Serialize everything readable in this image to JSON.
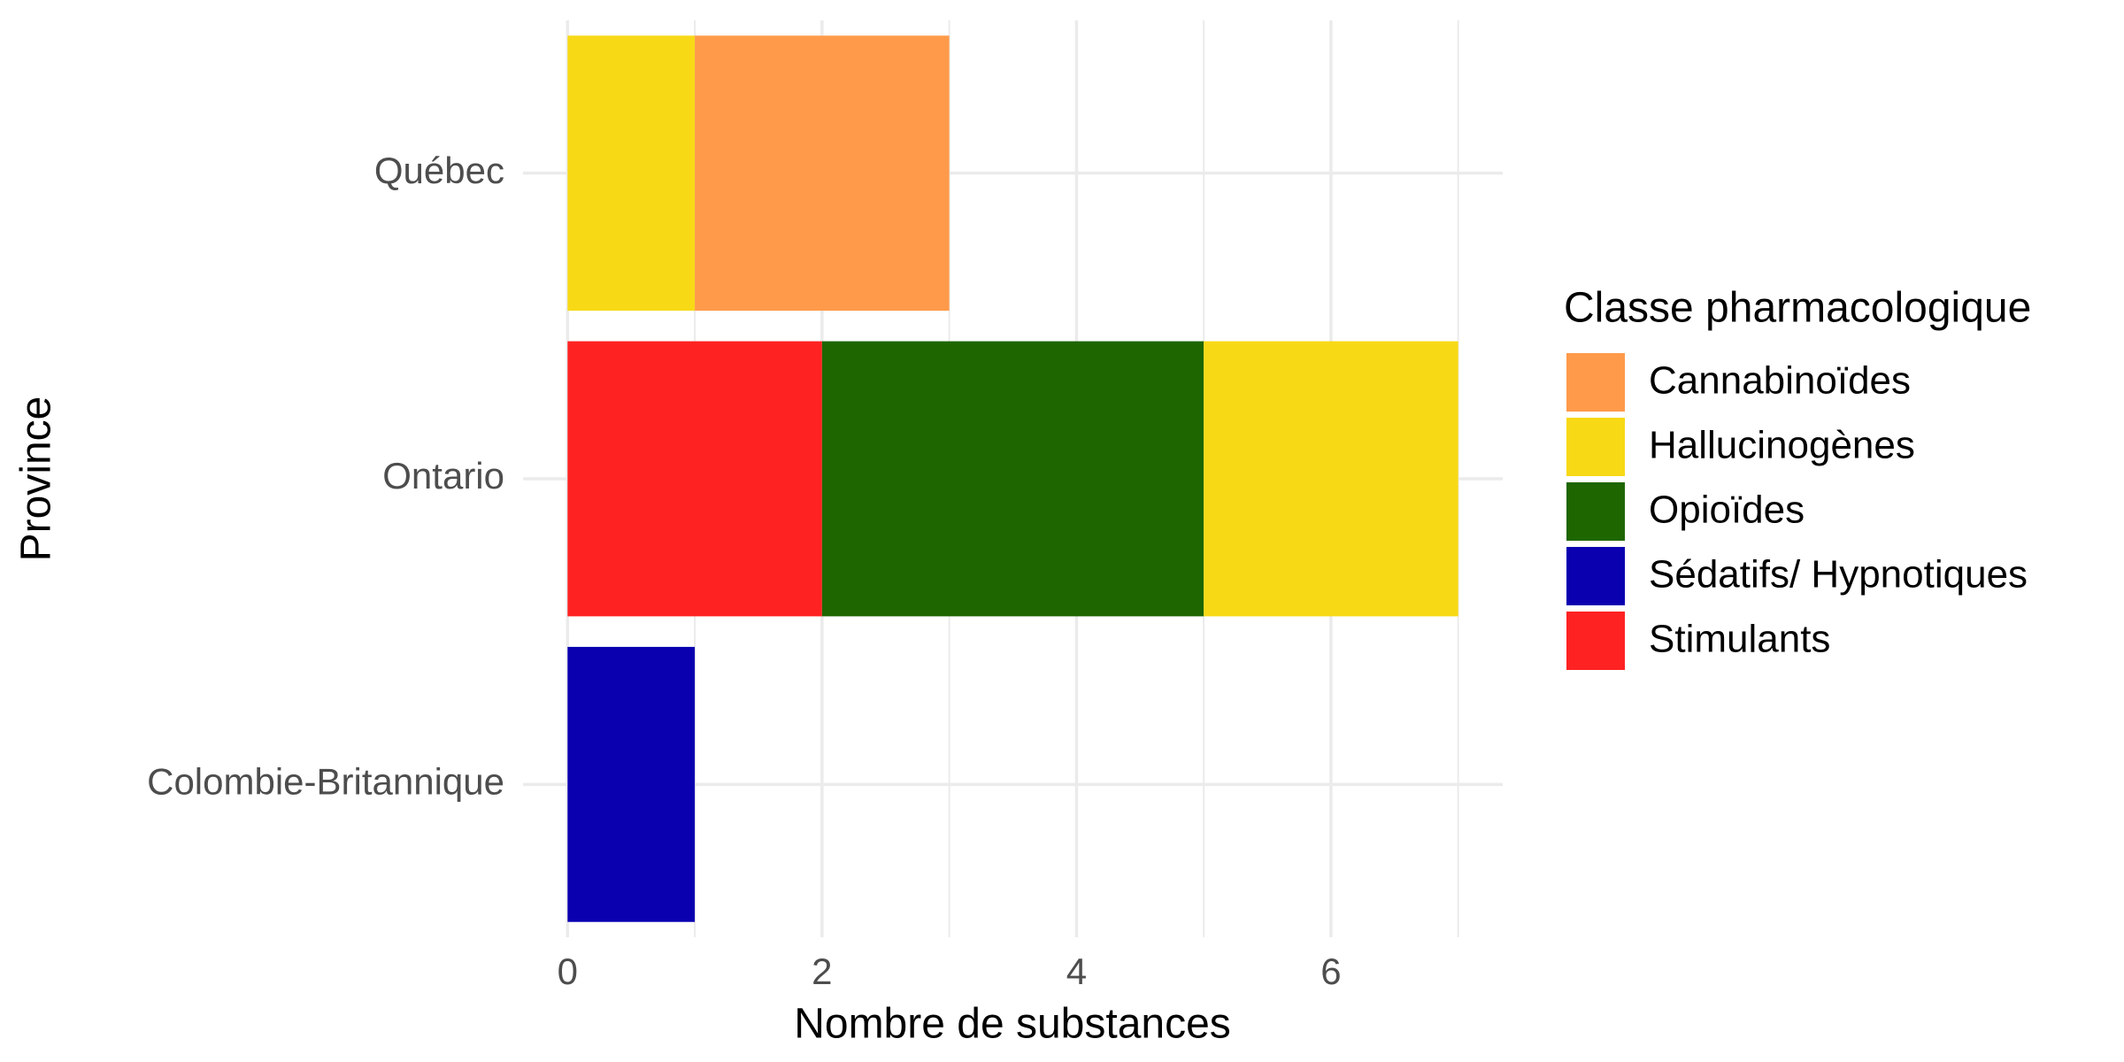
{
  "chart_data": {
    "type": "stacked-bar-horizontal",
    "x_label": "Nombre de substances",
    "y_label": "Province",
    "legend_title": "Classe pharmacologique",
    "legend_position": "right",
    "categories": [
      "Québec",
      "Ontario",
      "Colombie-Britannique"
    ],
    "series": [
      {
        "name": "Cannabinoïdes",
        "color": "#FF9A4A",
        "values": [
          2,
          null,
          null
        ]
      },
      {
        "name": "Hallucinogènes",
        "color": "#F7D916",
        "values": [
          1,
          2,
          null
        ]
      },
      {
        "name": "Opioïdes",
        "color": "#1E6600",
        "values": [
          null,
          3,
          null
        ]
      },
      {
        "name": "Sédatifs/ Hypnotiques",
        "color": "#0A00B0",
        "values": [
          null,
          null,
          1
        ]
      },
      {
        "name": "Stimulants",
        "color": "#FF2222",
        "values": [
          null,
          2,
          null
        ]
      }
    ],
    "xlim": [
      -0.35,
      7.35
    ],
    "xticks": [
      0,
      2,
      4,
      6
    ],
    "xminorticks": [
      1,
      3,
      5,
      7
    ],
    "grid": true
  }
}
